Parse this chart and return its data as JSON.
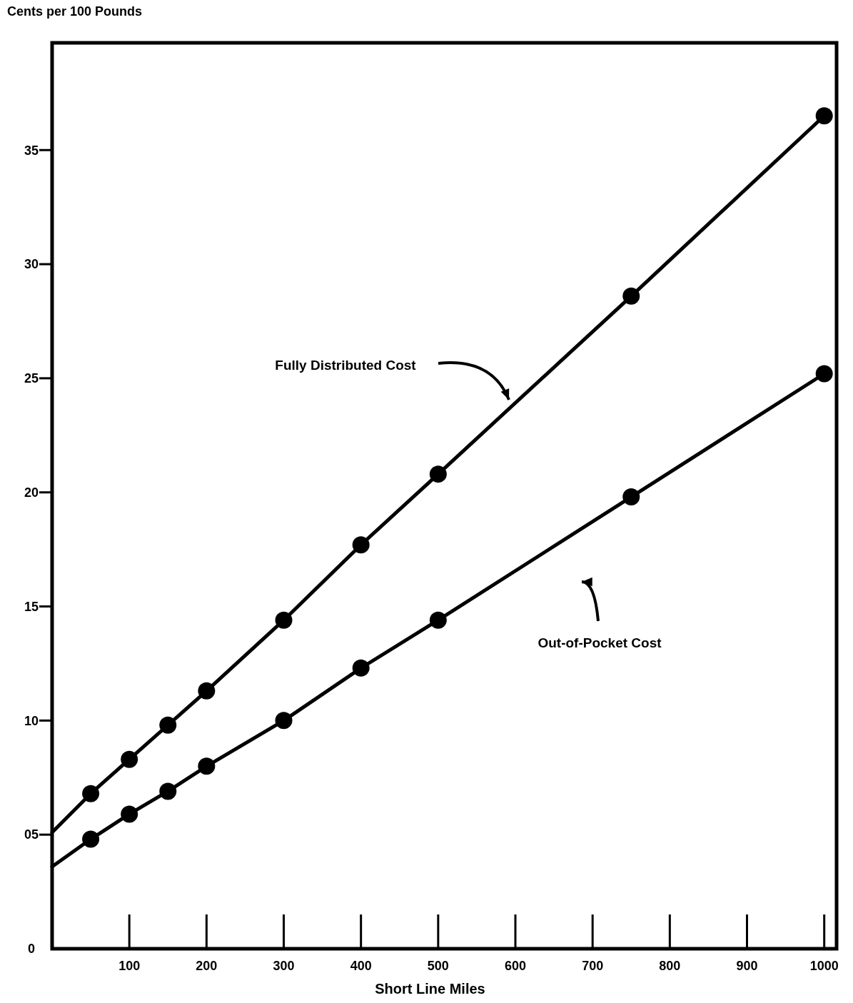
{
  "chart_data": {
    "type": "line",
    "ylabel": "Cents per 100 Pounds",
    "xlabel": "Short Line Miles",
    "xlim": [
      0,
      1016
    ],
    "ylim": [
      0,
      39.7
    ],
    "xticks": [
      100,
      200,
      300,
      400,
      500,
      600,
      700,
      800,
      900,
      1000
    ],
    "yticks": [
      {
        "value": 0,
        "label": "0"
      },
      {
        "value": 5,
        "label": "05"
      },
      10,
      15,
      20,
      25,
      30,
      35
    ],
    "marker": "circle",
    "grid": false,
    "series": [
      {
        "color": "#000000",
        "x": [
          50,
          100,
          150,
          200,
          300,
          400,
          500,
          750,
          1000
        ],
        "values": [
          6.8,
          8.3,
          9.8,
          11.3,
          14.4,
          17.7,
          20.8,
          28.6,
          36.5
        ]
      },
      {
        "color": "#000000",
        "x": [
          50,
          100,
          150,
          200,
          300,
          400,
          500,
          750,
          1000
        ],
        "values": [
          4.8,
          5.9,
          6.9,
          8.0,
          10.0,
          12.3,
          14.4,
          19.8,
          25.2
        ]
      },
      {
        "type": "line",
        "marker": "none",
        "color": "#000000",
        "x": [
          0,
          50
        ],
        "values": [
          5.1,
          6.8
        ]
      },
      {
        "type": "line",
        "marker": "none",
        "color": "#000000",
        "x": [
          0,
          50
        ],
        "values": [
          3.6,
          4.8
        ]
      }
    ],
    "annotations": [
      "Fully Distributed Cost",
      "Out-of-Pocket Cost"
    ]
  }
}
